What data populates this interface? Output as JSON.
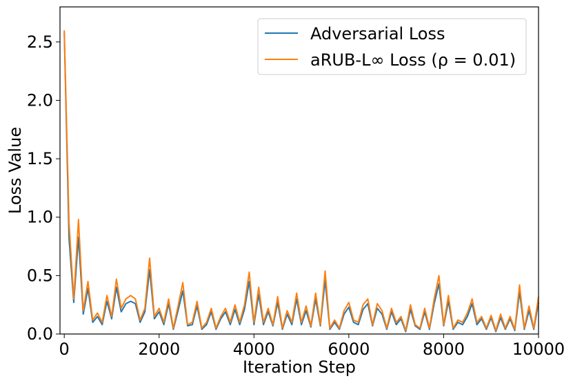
{
  "chart_data": {
    "type": "line",
    "xlabel": "Iteration Step",
    "ylabel": "Loss Value",
    "x": [
      0,
      100,
      200,
      300,
      400,
      500,
      600,
      700,
      800,
      900,
      1000,
      1100,
      1200,
      1300,
      1400,
      1500,
      1600,
      1700,
      1800,
      1900,
      2000,
      2100,
      2200,
      2300,
      2400,
      2500,
      2600,
      2700,
      2800,
      2900,
      3000,
      3100,
      3200,
      3300,
      3400,
      3500,
      3600,
      3700,
      3800,
      3900,
      4000,
      4100,
      4200,
      4300,
      4400,
      4500,
      4600,
      4700,
      4800,
      4900,
      5000,
      5100,
      5200,
      5300,
      5400,
      5500,
      5600,
      5700,
      5800,
      5900,
      6000,
      6100,
      6200,
      6300,
      6400,
      6500,
      6600,
      6700,
      6800,
      6900,
      7000,
      7100,
      7200,
      7300,
      7400,
      7500,
      7600,
      7700,
      7800,
      7900,
      8000,
      8100,
      8200,
      8300,
      8400,
      8500,
      8600,
      8700,
      8800,
      8900,
      9000,
      9100,
      9200,
      9300,
      9400,
      9500,
      9600,
      9700,
      9800,
      9900,
      10000
    ],
    "series": [
      {
        "name": "Adversarial Loss",
        "color": "#1f77b4",
        "values": [
          2.58,
          0.82,
          0.27,
          0.83,
          0.17,
          0.39,
          0.1,
          0.15,
          0.08,
          0.28,
          0.13,
          0.4,
          0.19,
          0.26,
          0.28,
          0.26,
          0.1,
          0.19,
          0.55,
          0.13,
          0.19,
          0.08,
          0.26,
          0.04,
          0.2,
          0.37,
          0.07,
          0.08,
          0.24,
          0.04,
          0.08,
          0.19,
          0.04,
          0.13,
          0.19,
          0.08,
          0.21,
          0.08,
          0.21,
          0.45,
          0.08,
          0.34,
          0.08,
          0.19,
          0.07,
          0.27,
          0.04,
          0.17,
          0.08,
          0.3,
          0.08,
          0.2,
          0.06,
          0.3,
          0.07,
          0.46,
          0.04,
          0.1,
          0.04,
          0.17,
          0.23,
          0.1,
          0.08,
          0.21,
          0.26,
          0.07,
          0.22,
          0.17,
          0.04,
          0.19,
          0.08,
          0.13,
          0.02,
          0.21,
          0.07,
          0.04,
          0.19,
          0.04,
          0.26,
          0.43,
          0.07,
          0.28,
          0.04,
          0.1,
          0.08,
          0.15,
          0.26,
          0.08,
          0.13,
          0.04,
          0.14,
          0.02,
          0.14,
          0.04,
          0.13,
          0.03,
          0.36,
          0.04,
          0.2,
          0.04,
          0.27
        ]
      },
      {
        "name": "aRUB-L∞ Loss (ρ = 0.01)",
        "color": "#ff7f0e",
        "values": [
          2.6,
          0.96,
          0.3,
          0.98,
          0.2,
          0.45,
          0.12,
          0.18,
          0.1,
          0.33,
          0.15,
          0.47,
          0.22,
          0.3,
          0.33,
          0.3,
          0.12,
          0.22,
          0.65,
          0.15,
          0.22,
          0.1,
          0.3,
          0.05,
          0.24,
          0.44,
          0.08,
          0.1,
          0.28,
          0.05,
          0.1,
          0.22,
          0.05,
          0.15,
          0.22,
          0.1,
          0.25,
          0.1,
          0.25,
          0.53,
          0.1,
          0.4,
          0.1,
          0.22,
          0.08,
          0.32,
          0.05,
          0.2,
          0.1,
          0.35,
          0.1,
          0.24,
          0.07,
          0.35,
          0.08,
          0.54,
          0.05,
          0.12,
          0.05,
          0.2,
          0.27,
          0.12,
          0.1,
          0.25,
          0.3,
          0.08,
          0.26,
          0.2,
          0.05,
          0.22,
          0.1,
          0.15,
          0.03,
          0.25,
          0.08,
          0.05,
          0.22,
          0.05,
          0.3,
          0.5,
          0.08,
          0.33,
          0.05,
          0.12,
          0.1,
          0.18,
          0.3,
          0.1,
          0.15,
          0.05,
          0.16,
          0.03,
          0.17,
          0.05,
          0.15,
          0.04,
          0.42,
          0.05,
          0.24,
          0.05,
          0.32
        ]
      }
    ],
    "xlim": [
      -90,
      10000
    ],
    "ylim": [
      0,
      2.8
    ],
    "xticks": [
      0,
      2000,
      4000,
      6000,
      8000,
      10000
    ],
    "yticks": [
      {
        "value": 0,
        "label": "0.0"
      },
      0.5,
      {
        "value": 1,
        "label": "1.0"
      },
      1.5,
      {
        "value": 2,
        "label": "2.0"
      },
      2.5
    ],
    "legend": "upper right"
  }
}
